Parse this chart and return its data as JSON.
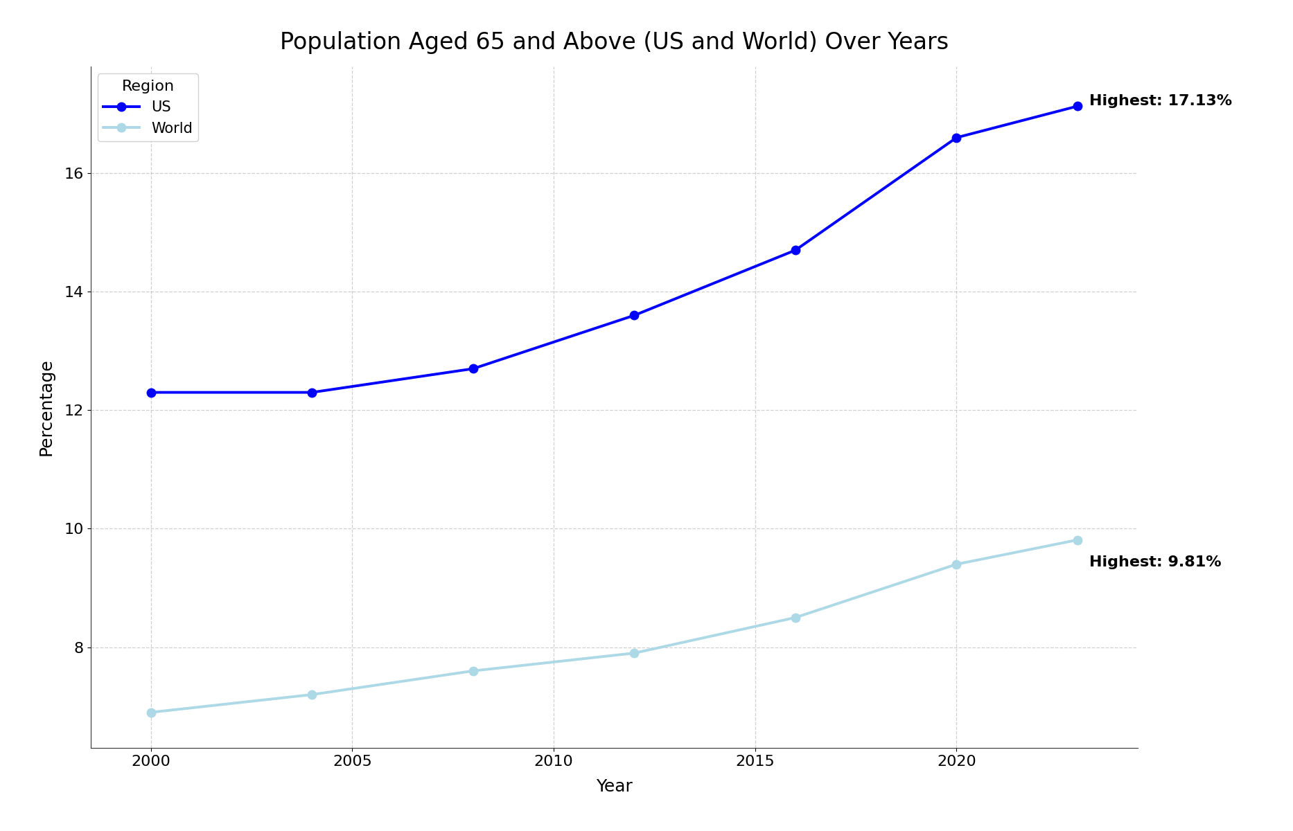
{
  "title": "Population Aged 65 and Above (US and World) Over Years",
  "xlabel": "Year",
  "ylabel": "Percentage",
  "us_years": [
    2000,
    2004,
    2008,
    2012,
    2016,
    2020,
    2023
  ],
  "us_values": [
    12.3,
    12.3,
    12.7,
    13.6,
    14.7,
    16.6,
    17.13
  ],
  "world_years": [
    2000,
    2004,
    2008,
    2012,
    2016,
    2020,
    2023
  ],
  "world_values": [
    6.9,
    7.2,
    7.6,
    7.9,
    8.5,
    9.4,
    9.81
  ],
  "us_color": "#0000FF",
  "world_color": "#ADD8E6",
  "us_label": "US",
  "world_label": "World",
  "legend_title": "Region",
  "us_annotation": "Highest: 17.13%",
  "world_annotation": "Highest: 9.81%",
  "ylim_min": 6.3,
  "ylim_max": 17.8,
  "xlim_min": 1998.5,
  "xlim_max": 2024.5,
  "title_fontsize": 24,
  "axis_label_fontsize": 18,
  "tick_fontsize": 16,
  "annotation_fontsize": 16,
  "legend_fontsize": 15,
  "line_width": 2.8,
  "marker_size": 9,
  "background_color": "#ffffff",
  "grid_color": "#bbbbbb",
  "yticks": [
    8,
    10,
    12,
    14,
    16
  ],
  "xticks": [
    2000,
    2005,
    2010,
    2015,
    2020
  ]
}
